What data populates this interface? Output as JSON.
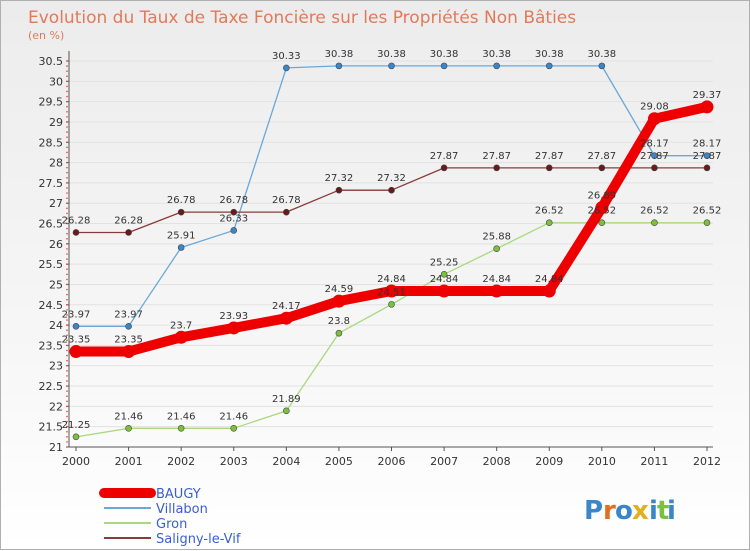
{
  "chart_data": {
    "type": "line",
    "title": "Evolution du Taux de Taxe Foncière sur les Propriétés Non Bâties",
    "ylabel": "(en %)",
    "xlabel": "",
    "x": [
      "2000",
      "2001",
      "2002",
      "2003",
      "2004",
      "2005",
      "2006",
      "2007",
      "2008",
      "2009",
      "2010",
      "2011",
      "2012"
    ],
    "ylim": [
      21,
      30.5
    ],
    "yticks": [
      "21",
      "21.5",
      "22",
      "22.5",
      "23",
      "23.5",
      "24",
      "24.5",
      "25",
      "25.5",
      "26",
      "26.5",
      "27",
      "27.5",
      "28",
      "28.5",
      "29",
      "29.5",
      "30",
      "30.5"
    ],
    "series": [
      {
        "name": "Villabon",
        "color": "#6aa8d8",
        "marker": "#3a86c8",
        "values": [
          23.97,
          23.97,
          25.91,
          26.33,
          30.33,
          30.38,
          30.38,
          30.38,
          30.38,
          30.38,
          30.38,
          28.17,
          28.17
        ],
        "labels": [
          "23.97",
          "23.97",
          "25.91",
          "26.33",
          "30.33",
          "30.38",
          "30.38",
          "30.38",
          "30.38",
          "30.38",
          "30.38",
          "28.17",
          "28.17"
        ]
      },
      {
        "name": "Gron",
        "color": "#a8d880",
        "marker": "#7cc040",
        "values": [
          21.25,
          21.46,
          21.46,
          21.46,
          21.89,
          23.8,
          24.51,
          25.25,
          25.88,
          26.52,
          26.52,
          26.52,
          26.52
        ],
        "labels": [
          "21.25",
          "21.46",
          "21.46",
          "21.46",
          "21.89",
          "23.8",
          "24.51",
          "25.25",
          "25.88",
          "26.52",
          "26.52",
          "26.52",
          "26.52"
        ]
      },
      {
        "name": "Saligny-le-Vif",
        "color": "#8a3a3a",
        "marker": "#6a1a1a",
        "values": [
          26.28,
          26.28,
          26.78,
          26.78,
          26.78,
          27.32,
          27.32,
          27.87,
          27.87,
          27.87,
          27.87,
          27.87,
          27.87
        ],
        "labels": [
          "26.28",
          "26.28",
          "26.78",
          "26.78",
          "26.78",
          "27.32",
          "27.32",
          "27.87",
          "27.87",
          "27.87",
          "27.87",
          "27.87",
          "27.87"
        ]
      },
      {
        "name": "BAUGY",
        "color": "#ee0000",
        "marker": "#ee0000",
        "thick": true,
        "values": [
          23.35,
          23.35,
          23.7,
          23.93,
          24.17,
          24.59,
          24.84,
          24.84,
          24.84,
          24.84,
          26.89,
          29.08,
          29.37
        ],
        "labels": [
          "23.35",
          "23.35",
          "23.7",
          "23.93",
          "24.17",
          "24.59",
          "24.84",
          "24.84",
          "24.84",
          "24.84",
          "26.89",
          "29.08",
          "29.37"
        ]
      }
    ],
    "legend": [
      "BAUGY",
      "Villabon",
      "Gron",
      "Saligny-le-Vif"
    ]
  },
  "logo": {
    "letters": [
      "P",
      "r",
      "o",
      "x",
      "i",
      "t",
      "i"
    ],
    "colors": [
      "#3a86c8",
      "#e07020",
      "#3a86c8",
      "#e0b020",
      "#3a86c8",
      "#7cc040",
      "#3a86c8"
    ]
  }
}
